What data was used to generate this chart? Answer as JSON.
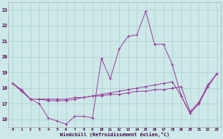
{
  "xlabel": "Windchill (Refroidissement éolien,°C)",
  "xlim": [
    -0.5,
    23.5
  ],
  "ylim": [
    15.5,
    23.5
  ],
  "yticks": [
    16,
    17,
    18,
    19,
    20,
    21,
    22,
    23
  ],
  "xticks": [
    0,
    1,
    2,
    3,
    4,
    5,
    6,
    7,
    8,
    9,
    10,
    11,
    12,
    13,
    14,
    15,
    16,
    17,
    18,
    19,
    20,
    21,
    22,
    23
  ],
  "bg_color": "#cce8e8",
  "line_color": "#993399",
  "grid_color": "#aacccc",
  "line1_y": [
    18.3,
    17.9,
    17.3,
    17.0,
    16.1,
    15.9,
    15.7,
    16.2,
    16.2,
    16.1,
    19.9,
    18.6,
    20.5,
    21.3,
    21.4,
    22.9,
    20.8,
    20.8,
    19.5,
    17.5,
    16.4,
    17.0,
    18.1,
    18.9
  ],
  "line2_y": [
    18.3,
    17.8,
    17.3,
    17.3,
    17.2,
    17.2,
    17.2,
    17.3,
    17.4,
    17.5,
    17.6,
    17.7,
    17.8,
    17.9,
    18.0,
    18.1,
    18.2,
    18.3,
    18.4,
    17.5,
    16.4,
    17.0,
    18.1,
    18.9
  ],
  "line3_y": [
    18.3,
    17.8,
    17.3,
    17.3,
    17.3,
    17.3,
    17.3,
    17.4,
    17.4,
    17.5,
    17.5,
    17.6,
    17.6,
    17.7,
    17.8,
    17.8,
    17.9,
    17.9,
    18.0,
    18.1,
    16.5,
    17.1,
    18.2,
    18.9
  ]
}
